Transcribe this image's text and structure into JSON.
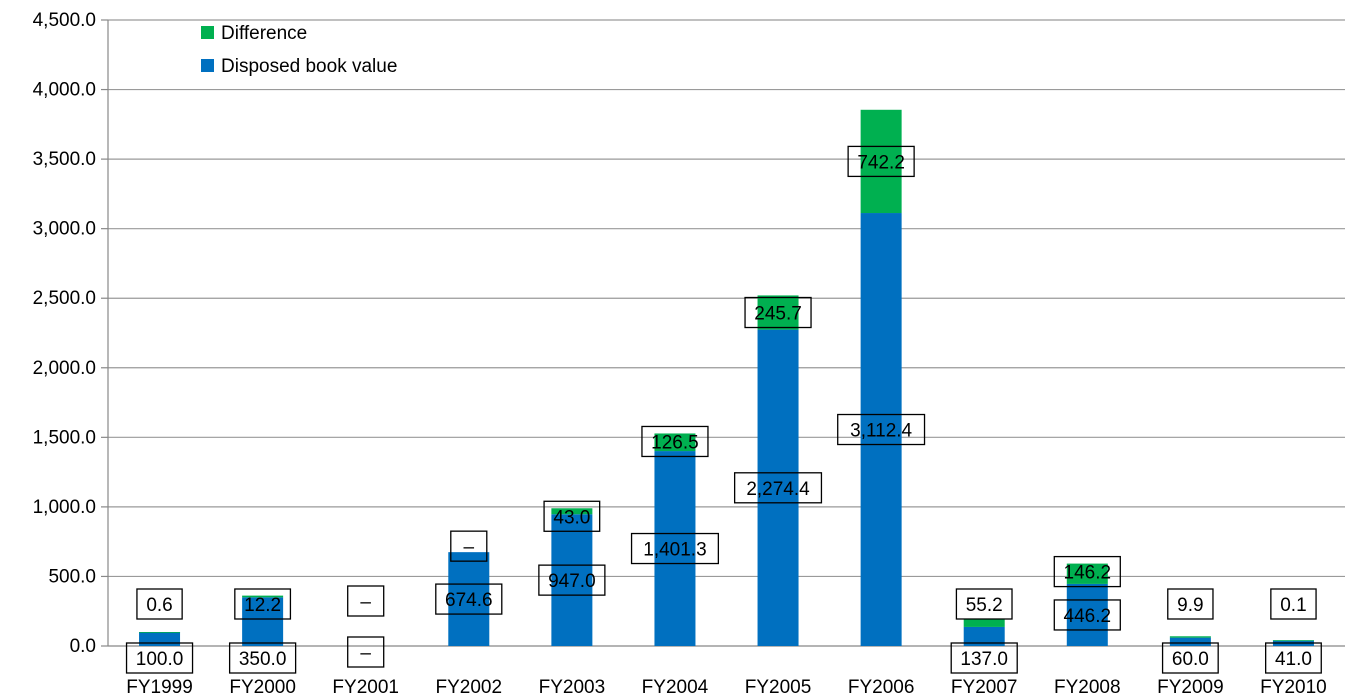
{
  "chart_data": {
    "type": "bar",
    "stacked": true,
    "title": "",
    "xlabel": "",
    "ylabel": "",
    "ylim": [
      0,
      4500
    ],
    "y_ticks": [
      0,
      500,
      1000,
      1500,
      2000,
      2500,
      3000,
      3500,
      4000,
      4500
    ],
    "y_tick_labels": [
      "0.0",
      "500.0",
      "1,000.0",
      "1,500.0",
      "2,000.0",
      "2,500.0",
      "3,000.0",
      "3,500.0",
      "4,000.0",
      "4,500.0"
    ],
    "grid": true,
    "legend_position": "top-left",
    "categories": [
      "FY1999",
      "FY2000",
      "FY2001",
      "FY2002",
      "FY2003",
      "FY2004",
      "FY2005",
      "FY2006",
      "FY2007",
      "FY2008",
      "FY2009",
      "FY2010"
    ],
    "series": [
      {
        "name": "Disposed book value",
        "color": "#0070c0",
        "values": [
          100.0,
          350.0,
          0,
          674.6,
          947.0,
          1401.3,
          2274.4,
          3112.4,
          137.0,
          446.2,
          60.0,
          41.0
        ],
        "labels": [
          "100.0",
          "350.0",
          "–",
          "674.6",
          "947.0",
          "1,401.3",
          "2,274.4",
          "3,112.4",
          "137.0",
          "446.2",
          "60.0",
          "41.0"
        ]
      },
      {
        "name": "Difference",
        "color": "#00b050",
        "values": [
          0.6,
          12.2,
          0,
          0,
          43.0,
          126.5,
          245.7,
          742.2,
          55.2,
          146.2,
          9.9,
          0.1
        ],
        "labels": [
          "0.6",
          "12.2",
          "–",
          "–",
          "43.0",
          "126.5",
          "245.7",
          "742.2",
          "55.2",
          "146.2",
          "9.9",
          "0.1"
        ]
      }
    ],
    "legend": [
      {
        "name": "Difference",
        "color": "#00b050"
      },
      {
        "name": "Disposed book value",
        "color": "#0070c0"
      }
    ]
  }
}
